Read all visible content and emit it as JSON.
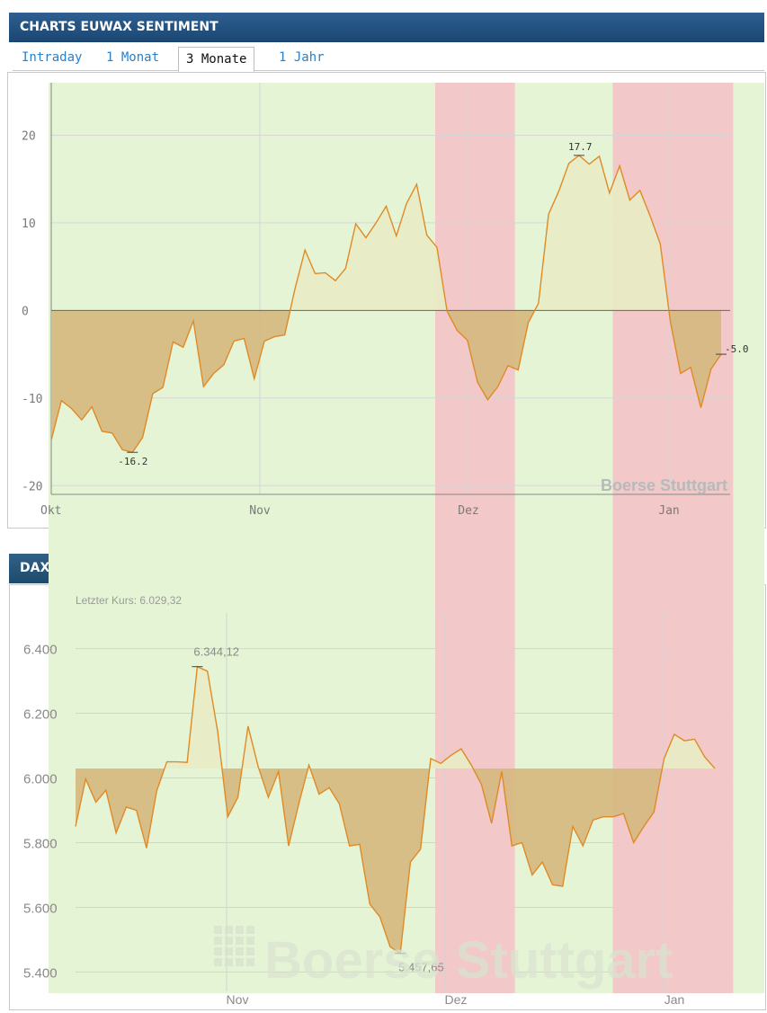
{
  "sentiment_panel": {
    "title": "CHARTS EUWAX SENTIMENT",
    "tabs": [
      {
        "label": "Intraday",
        "active": false
      },
      {
        "label": "1 Monat",
        "active": false
      },
      {
        "label": "3 Monate",
        "active": true
      },
      {
        "label": "1 Jahr",
        "active": false
      }
    ],
    "watermark": "Boerse Stuttgart"
  },
  "dax_panel": {
    "title": "DAX",
    "last_price_label": "Letzter Kurs: 6.029,32",
    "watermark": "Boerse Stuttgart"
  },
  "colors": {
    "header_bg": "#1c4672",
    "positive_band": "#e5f4d5",
    "negative_band": "#f2c8c8",
    "fill_above": "#e8ecc6",
    "fill_below": "#d6b980",
    "fill_below_red": "#de8a68",
    "line": "#e08a26",
    "tab_link": "#2a80c8"
  },
  "chart_data": [
    {
      "type": "area",
      "title": "",
      "xlabel": "",
      "ylabel": "",
      "x_ticks": [
        "Okt",
        "Nov",
        "Dez",
        "Jan"
      ],
      "y_ticks": [
        20,
        10,
        0,
        -10,
        -20
      ],
      "ylim": [
        -21,
        26
      ],
      "baseline": 0,
      "grid": true,
      "series": [
        {
          "values": [
            -14.8,
            -10.3,
            -11.2,
            -12.5,
            -11,
            -13.8,
            -14,
            -15.9,
            -16.2,
            -14.5,
            -9.5,
            -8.8,
            -3.6,
            -4.2,
            -1.2,
            -8.7,
            -7.2,
            -6.2,
            -3.5,
            -3.2,
            -7.8,
            -3.5,
            -3,
            -2.8,
            2.4,
            6.9,
            4.2,
            4.3,
            3.4,
            4.8,
            9.9,
            8.3,
            10,
            11.9,
            8.5,
            12.2,
            14.4,
            8.6,
            7.2,
            -0.1,
            -2.3,
            -3.4,
            -8.2,
            -10.2,
            -8.7,
            -6.3,
            -6.8,
            -1.4,
            0.8,
            11,
            13.6,
            16.8,
            17.7,
            16.7,
            17.6,
            13.4,
            16.5,
            12.6,
            13.7,
            10.8,
            7.6,
            -1.3,
            -7.2,
            -6.5,
            -11.1,
            -6.7,
            -5
          ]
        }
      ],
      "annotations": [
        {
          "label": "-16.2",
          "value": -16.2
        },
        {
          "label": "17.7",
          "value": 17.7
        },
        {
          "label": "-5.0",
          "value": -5.0
        }
      ],
      "sell_periods": [
        {
          "from": 38,
          "to": 45.5
        },
        {
          "from": 55.5,
          "to": 67
        }
      ]
    },
    {
      "type": "area",
      "title": "",
      "xlabel": "",
      "ylabel": "",
      "x_ticks": [
        "Nov",
        "Dez",
        "Jan"
      ],
      "y_ticks": [
        "6.400",
        "6.200",
        "6.000",
        "5.800",
        "5.600",
        "5.400"
      ],
      "ylim": [
        5340,
        6510
      ],
      "baseline": 6029.32,
      "grid": true,
      "series": [
        {
          "values": [
            5850,
            5997,
            5925,
            5962,
            5830,
            5910,
            5900,
            5783,
            5960,
            6050,
            6050,
            6048,
            6344.12,
            6330,
            6145,
            5880,
            5940,
            6160,
            6035,
            5940,
            6020,
            5790,
            5920,
            6040,
            5950,
            5970,
            5920,
            5790,
            5795,
            5610,
            5570,
            5478,
            5457.65,
            5740,
            5780,
            6060,
            6045,
            6070,
            6090,
            6040,
            5980,
            5860,
            6020,
            5790,
            5800,
            5700,
            5740,
            5670,
            5665,
            5850,
            5790,
            5870,
            5880,
            5880,
            5890,
            5800,
            5850,
            5895,
            6060,
            6135,
            6115,
            6120,
            6065,
            6029.32
          ]
        }
      ],
      "annotations": [
        {
          "label": "6.344,12",
          "value": 6344.12
        },
        {
          "label": "5.457,65",
          "value": 5457.65
        }
      ]
    }
  ]
}
